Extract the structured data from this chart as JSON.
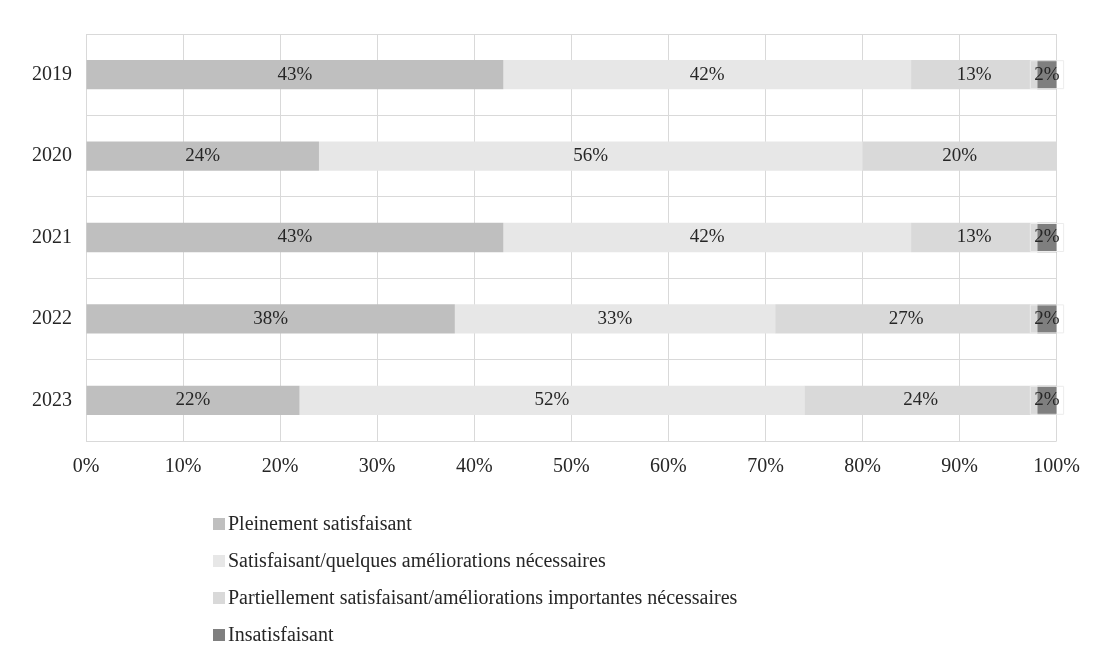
{
  "chart_data": {
    "type": "bar",
    "orientation": "horizontal",
    "stacked": true,
    "categories": [
      "2019",
      "2020",
      "2021",
      "2022",
      "2023"
    ],
    "series": [
      {
        "name": "Pleinement satisfaisant",
        "color": "#bfbfbf",
        "values": [
          43,
          24,
          43,
          38,
          22
        ],
        "value_labels": [
          "43%",
          "24%",
          "43%",
          "38%",
          "22%"
        ]
      },
      {
        "name": "Satisfaisant/quelques améliorations nécessaires",
        "color": "#e7e7e7",
        "values": [
          42,
          56,
          42,
          33,
          52
        ],
        "value_labels": [
          "42%",
          "56%",
          "42%",
          "33%",
          "52%"
        ]
      },
      {
        "name": "Partiellement satisfaisant/améliorations importantes nécessaires",
        "color": "#d9d9d9",
        "values": [
          13,
          20,
          13,
          27,
          24
        ],
        "value_labels": [
          "13%",
          "20%",
          "13%",
          "27%",
          "24%"
        ]
      },
      {
        "name": "Insatisfaisant",
        "color": "#7f7f7f",
        "values": [
          2,
          null,
          2,
          2,
          2
        ],
        "value_labels": [
          "2%",
          null,
          "2%",
          "2%",
          "2%"
        ]
      }
    ],
    "xlim": [
      0,
      100
    ],
    "xticks": [
      {
        "value": 0,
        "label": "0%"
      },
      {
        "value": 10,
        "label": "10%"
      },
      {
        "value": 20,
        "label": "20%"
      },
      {
        "value": 30,
        "label": "30%"
      },
      {
        "value": 40,
        "label": "40%"
      },
      {
        "value": 50,
        "label": "50%"
      },
      {
        "value": 60,
        "label": "60%"
      },
      {
        "value": 70,
        "label": "70%"
      },
      {
        "value": 80,
        "label": "80%"
      },
      {
        "value": 90,
        "label": "90%"
      },
      {
        "value": 100,
        "label": "100%"
      }
    ],
    "grid": true,
    "legend": "bottom"
  }
}
